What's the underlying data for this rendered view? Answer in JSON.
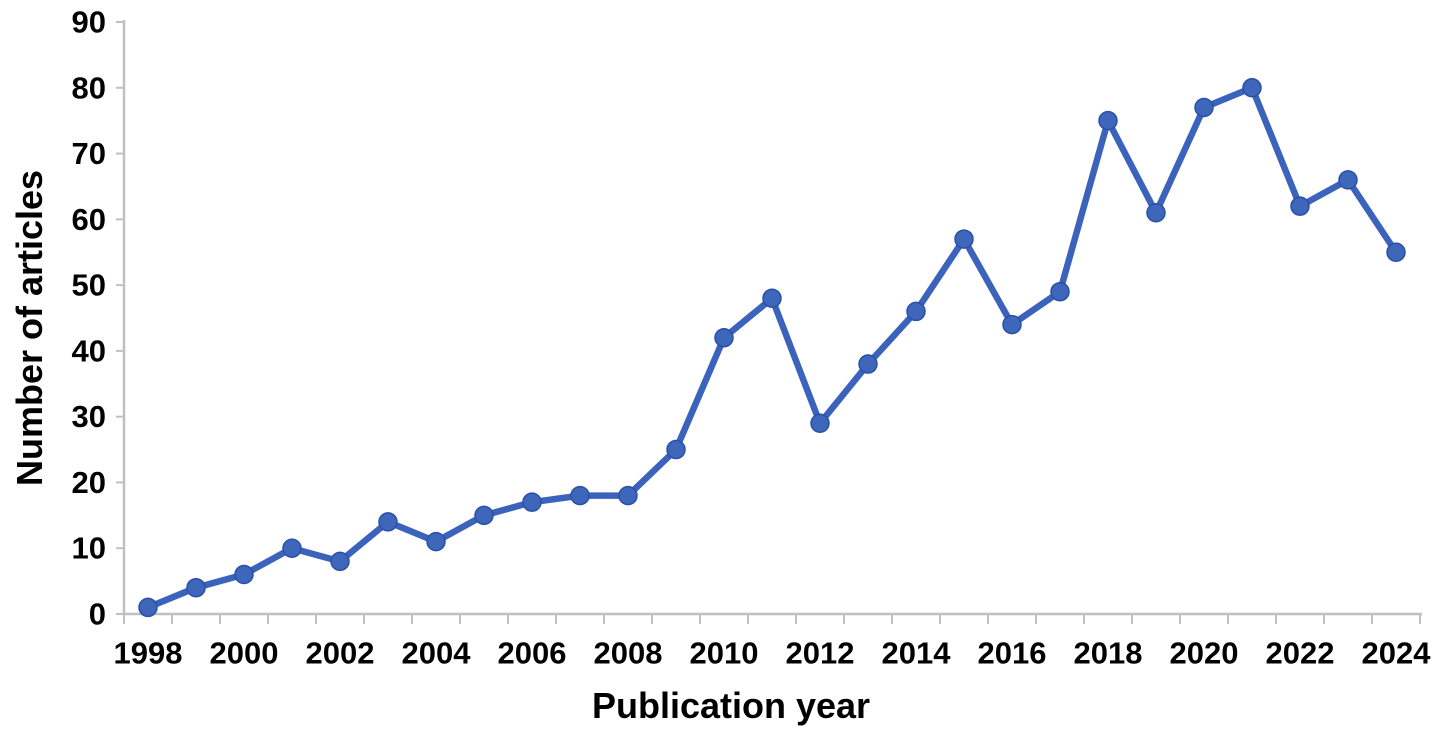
{
  "figure": {
    "xlabel": "Publication year",
    "ylabel": "Number of articles"
  },
  "chart_data": {
    "type": "line",
    "x": [
      1998,
      1999,
      2000,
      2001,
      2002,
      2003,
      2004,
      2005,
      2006,
      2007,
      2008,
      2009,
      2010,
      2011,
      2012,
      2013,
      2014,
      2015,
      2016,
      2017,
      2018,
      2019,
      2020,
      2021,
      2022,
      2023,
      2024
    ],
    "series": [
      {
        "name": "Number of articles",
        "values": [
          1,
          4,
          6,
          10,
          8,
          14,
          11,
          15,
          17,
          18,
          18,
          25,
          42,
          48,
          29,
          38,
          46,
          57,
          44,
          49,
          75,
          61,
          77,
          80,
          62,
          66,
          55
        ]
      }
    ],
    "title": "",
    "xlabel": "Publication year",
    "ylabel": "Number of articles",
    "ylim": [
      0,
      90
    ],
    "ytick_step": 10,
    "xtick_label_every": 2,
    "grid": false,
    "legend": "none",
    "marker": "circle",
    "colors": {
      "line": "#3C63BC",
      "marker_fill": "#3E66BB",
      "marker_edge": "#2A51A8",
      "axis": "#C0C0C0",
      "text": "#000000",
      "background": "#FFFFFF"
    }
  }
}
